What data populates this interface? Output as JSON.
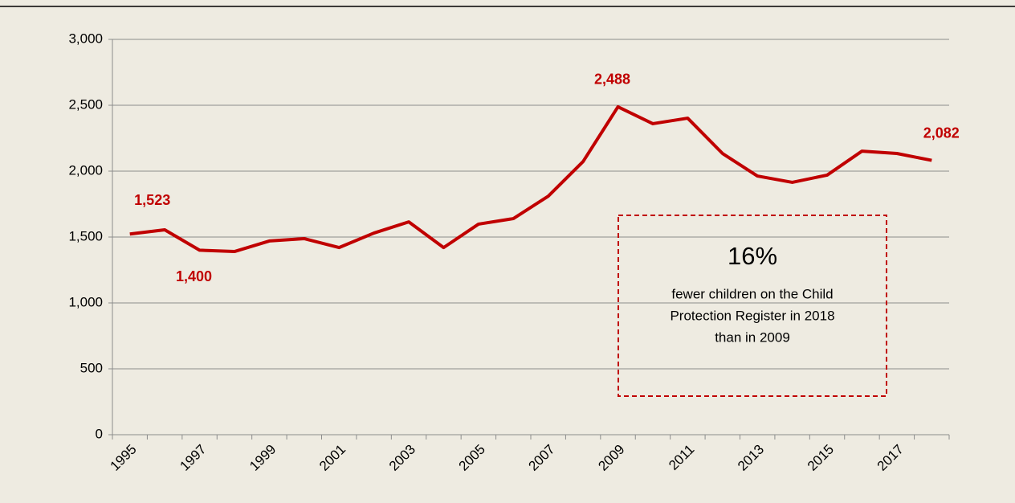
{
  "chart_data": {
    "type": "line",
    "categories": [
      "1995",
      null,
      "1997",
      null,
      "1999",
      null,
      "2001",
      null,
      "2003",
      null,
      "2005",
      null,
      "2007",
      null,
      "2009",
      null,
      "2011",
      null,
      "2013",
      null,
      "2015",
      null,
      "2017",
      null
    ],
    "series": [
      {
        "name": "Children on the Child Protection Register",
        "color": "#c00000",
        "values": [
          1523,
          1555,
          1400,
          1390,
          1470,
          1488,
          1420,
          1530,
          1615,
          1420,
          1598,
          1640,
          1810,
          2073,
          2488,
          2360,
          2402,
          2134,
          1963,
          1915,
          1970,
          2152,
          2134,
          2082
        ],
        "value_labels": [
          "1,523",
          null,
          "1,400",
          null,
          null,
          null,
          null,
          null,
          null,
          null,
          null,
          null,
          null,
          null,
          "2,488",
          null,
          null,
          null,
          null,
          null,
          null,
          null,
          null,
          "2,082"
        ]
      }
    ],
    "ylim": [
      0,
      3000
    ],
    "yticks": [
      0,
      500,
      {
        "value": 1000,
        "label": "1,000"
      },
      {
        "value": 1500,
        "label": "1,500"
      },
      {
        "value": 2000,
        "label": "2,000"
      },
      {
        "value": 2500,
        "label": "2,500"
      },
      {
        "value": 3000,
        "label": "3,000"
      }
    ],
    "grid": true,
    "annotation": {
      "headline": "16%",
      "lines": [
        "fewer children on the Child",
        "Protection Register in 2018",
        "than in 2009"
      ]
    }
  }
}
